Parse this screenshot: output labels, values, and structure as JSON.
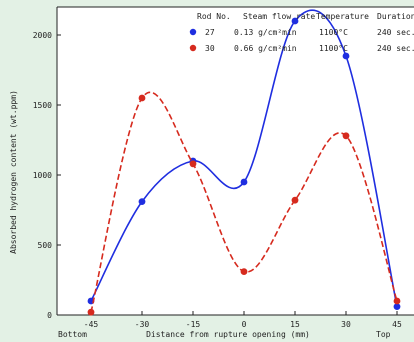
{
  "chart_data": {
    "type": "line",
    "xlabel": "Distance from rupture opening (mm)",
    "ylabel": "Absorbed hydrogen content (wt.ppm)",
    "x_end_labels": {
      "left": "Bottom",
      "right": "Top"
    },
    "x": [
      -45,
      -30,
      -15,
      0,
      15,
      30,
      45
    ],
    "xticks": [
      -45,
      -30,
      -15,
      0,
      15,
      30,
      45
    ],
    "yticks": [
      0,
      500,
      1000,
      1500,
      2000
    ],
    "xlim": [
      -55,
      50
    ],
    "ylim": [
      0,
      2200
    ],
    "legend": {
      "headers": [
        "Rod No.",
        "Steam flow rate",
        "Temperature",
        "Duration"
      ],
      "rows": [
        {
          "rod": "27",
          "flow": "0.13 g/cm²min",
          "temp": "1100°C",
          "duration": "240 sec."
        },
        {
          "rod": "30",
          "flow": "0.66 g/cm²min",
          "temp": "1100°C",
          "duration": "240 sec."
        }
      ]
    },
    "series": [
      {
        "name": "27",
        "color": "#1f2ee0",
        "style": "solid",
        "values": [
          100,
          810,
          1100,
          950,
          2100,
          1850,
          60
        ]
      },
      {
        "name": "30",
        "color": "#d62a1e",
        "style": "dashed",
        "values": [
          20,
          1550,
          1080,
          310,
          820,
          1280,
          100
        ]
      }
    ]
  }
}
